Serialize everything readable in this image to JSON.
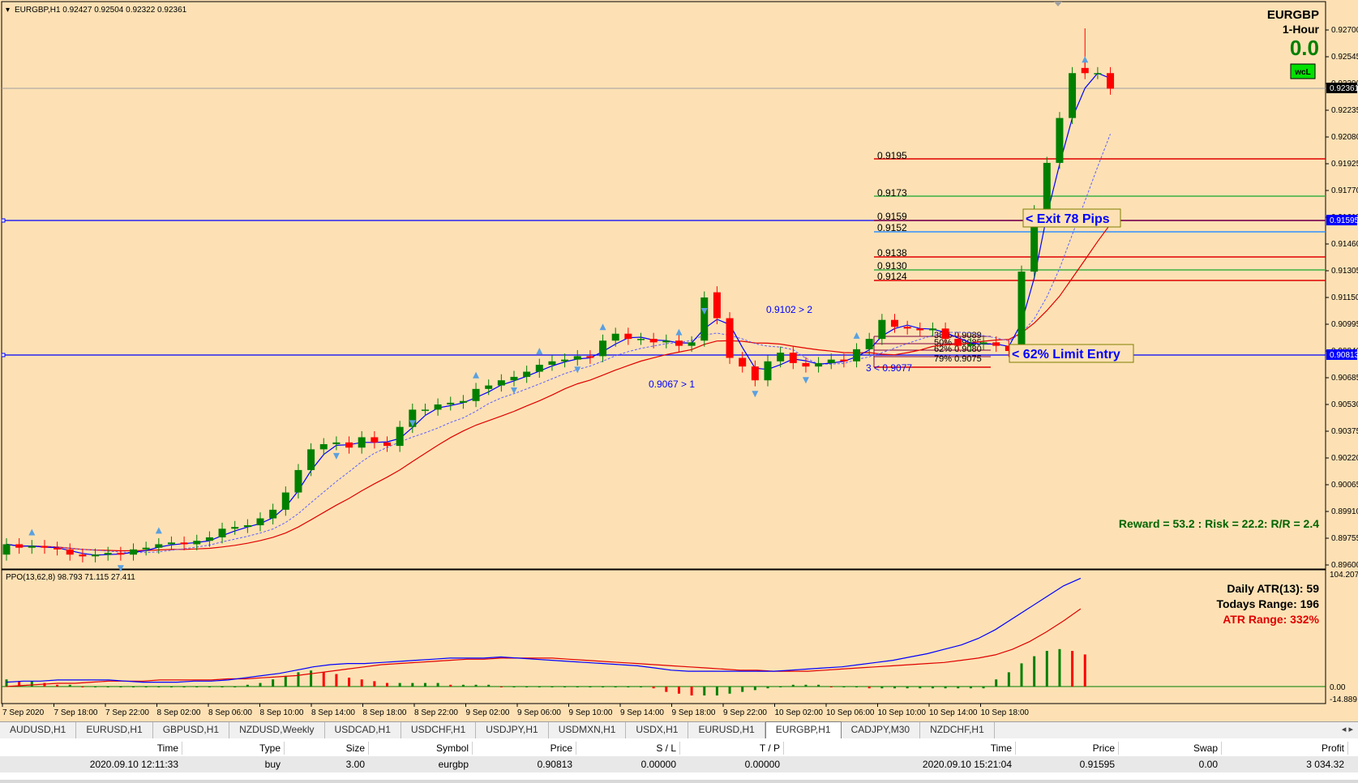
{
  "header": {
    "info": "EURGBP,H1  0.92427 0.92504 0.92322 0.92361",
    "symbol": "EURGBP",
    "timeframe": "1-Hour",
    "value": "0.0",
    "badge": "wcL"
  },
  "price_axis": {
    "ticks": [
      "0.92700",
      "0.92545",
      "0.92390",
      "0.92235",
      "0.92080",
      "0.91925",
      "0.91770",
      "0.91615",
      "0.91460",
      "0.91305",
      "0.91150",
      "0.90995",
      "0.90840",
      "0.90685",
      "0.90530",
      "0.90375",
      "0.90220",
      "0.90065",
      "0.89910",
      "0.89755",
      "0.89600"
    ],
    "current_price": "0.92361",
    "exit_price": "0.91595",
    "entry_price": "0.90813"
  },
  "time_axis": [
    "7 Sep 2020",
    "7 Sep 18:00",
    "7 Sep 22:00",
    "8 Sep 02:00",
    "8 Sep 06:00",
    "8 Sep 10:00",
    "8 Sep 14:00",
    "8 Sep 18:00",
    "8 Sep 22:00",
    "9 Sep 02:00",
    "9 Sep 06:00",
    "9 Sep 10:00",
    "9 Sep 14:00",
    "9 Sep 18:00",
    "9 Sep 22:00",
    "10 Sep 02:00",
    "10 Sep 06:00",
    "10 Sep 10:00",
    "10 Sep 14:00",
    "10 Sep 18:00"
  ],
  "levels": {
    "l9195": "0.9195",
    "l9173": "0.9173",
    "l9159": "0.9159",
    "l9152": "0.9152",
    "l9138": "0.9138",
    "l9130": "0.9130",
    "l9124": "0.9124"
  },
  "annotations": {
    "exit_label": "< Exit 78 Pips",
    "entry_label": "< 62% Limit Entry",
    "reward_text": "Reward = 53.2 : Risk = 22.2: R/R = 2.4",
    "fractal_up": "0.9102 > 2",
    "fractal_down": "0.9067 > 1",
    "fractal_low": "3 < 0.9077",
    "fib_38": "38% 0.9089",
    "fib_50": "50% 0.9085",
    "fib_62": "62% 0.9080",
    "fib_79": "79% 0.9075"
  },
  "indicator": {
    "label": "PPO(13,62,8) 98.793 71.115 27.411",
    "scale_top": "104.207",
    "scale_zero": "0.00",
    "scale_bottom": "-14.889",
    "daily_atr": "Daily ATR(13): 59",
    "todays_range": "Todays Range: 196",
    "atr_range": "ATR Range: 332%"
  },
  "colors": {
    "background": "#fde1b4",
    "bull": "#008000",
    "bear": "#ff0000",
    "fast_line": "#0000ff",
    "slow_line": "#e00000"
  },
  "tabs": [
    {
      "label": "AUDUSD,H1"
    },
    {
      "label": "EURUSD,H1"
    },
    {
      "label": "GBPUSD,H1"
    },
    {
      "label": "NZDUSD,Weekly"
    },
    {
      "label": "USDCAD,H1"
    },
    {
      "label": "USDCHF,H1"
    },
    {
      "label": "USDJPY,H1"
    },
    {
      "label": "USDMXN,H1"
    },
    {
      "label": "USDX,H1"
    },
    {
      "label": "EURUSD,H1"
    },
    {
      "label": "EURGBP,H1"
    },
    {
      "label": "CADJPY,M30"
    },
    {
      "label": "NZDCHF,H1"
    }
  ],
  "active_tab": 10,
  "terminal": {
    "columns": [
      "Time",
      "Type",
      "Size",
      "Symbol",
      "Price",
      "S / L",
      "T / P",
      "Time",
      "Price",
      "Swap",
      "Profit"
    ],
    "row": [
      "2020.09.10 12:11:33",
      "buy",
      "3.00",
      "eurgbp",
      "0.90813",
      "0.00000",
      "0.00000",
      "2020.09.10 15:21:04",
      "0.91595",
      "0.00",
      "3 034.32"
    ]
  }
}
